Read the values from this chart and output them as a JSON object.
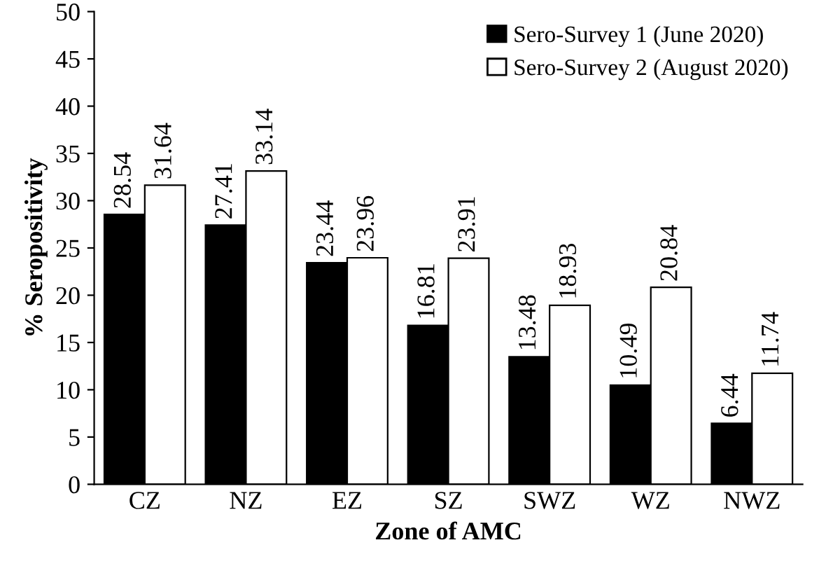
{
  "chart_data": {
    "type": "bar",
    "xlabel": "Zone of AMC",
    "ylabel": "% Seropositivity",
    "categories": [
      "CZ",
      "NZ",
      "EZ",
      "SZ",
      "SWZ",
      "WZ",
      "NWZ"
    ],
    "series": [
      {
        "name": "Sero-Survey 1 (June 2020)",
        "color": "#000000",
        "values": [
          28.54,
          27.41,
          23.44,
          16.81,
          13.48,
          10.49,
          6.44
        ]
      },
      {
        "name": "Sero-Survey 2 (August 2020)",
        "color": "#ffffff",
        "values": [
          31.64,
          33.14,
          23.96,
          23.91,
          18.93,
          20.84,
          11.74
        ]
      }
    ],
    "ylim": [
      0,
      50
    ],
    "yticks": [
      0,
      5,
      10,
      15,
      20,
      25,
      30,
      35,
      40,
      45,
      50
    ],
    "grid": false,
    "legend": "top right",
    "data_labels": true
  }
}
